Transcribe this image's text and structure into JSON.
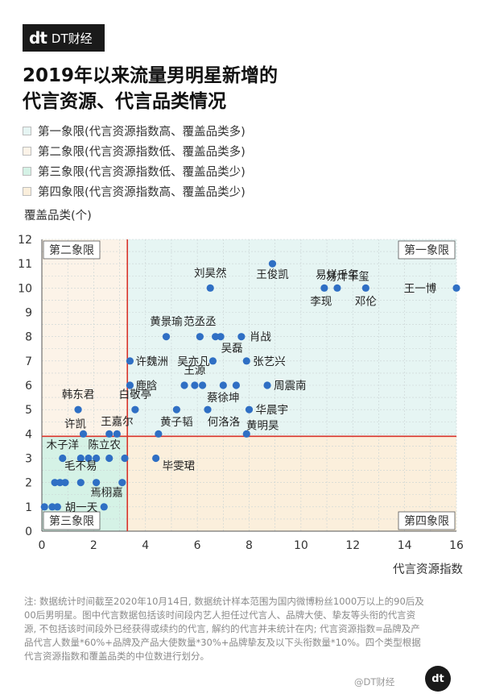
{
  "brand": {
    "mark": "dt",
    "name": "DT财经"
  },
  "title": {
    "line1": "2019年以来流量男明星新增的",
    "line2": "代言资源、代言品类情况"
  },
  "legend": [
    {
      "label": "第一象限(代言资源指数高、覆盖品类多)",
      "color": "#e6f5f3"
    },
    {
      "label": "第二象限(代言资源指数低、覆盖品类多)",
      "color": "#fcf3e8"
    },
    {
      "label": "第三象限(代言资源指数低、覆盖品类少)",
      "color": "#d5f2e6"
    },
    {
      "label": "第四象限(代言资源指数高、覆盖品类少)",
      "color": "#fbefdc"
    }
  ],
  "chart_data": {
    "type": "scatter",
    "title": "",
    "xlabel": "代言资源指数",
    "ylabel": "覆盖品类(个)",
    "xlim": [
      0,
      16
    ],
    "ylim": [
      0,
      12
    ],
    "xticks": [
      "0",
      "2",
      "4",
      "6",
      "8",
      "10",
      "12",
      "14",
      "16"
    ],
    "yticks": [
      "0",
      "1",
      "2",
      "3",
      "4",
      "5",
      "6",
      "7",
      "8",
      "9",
      "10",
      "11",
      "12"
    ],
    "median_x": 3.3,
    "median_y": 3.9,
    "quadrant_labels": {
      "q1": "第一象限",
      "q2": "第二象限",
      "q3": "第三象限",
      "q4": "第四象限"
    },
    "quadrant_colors": {
      "q1": "#e6f5f3",
      "q2": "#fcf3e8",
      "q3": "#d5f2e6",
      "q4": "#fbefdc"
    },
    "point_color": "#2f6fc4",
    "median_color": "#d9342b",
    "grid": true,
    "points": [
      {
        "x": 16.0,
        "y": 10,
        "label": "王一博"
      },
      {
        "x": 8.9,
        "y": 11,
        "label": "王俊凯"
      },
      {
        "x": 11.4,
        "y": 10,
        "label": "易烊千玺"
      },
      {
        "x": 10.9,
        "y": 10,
        "label": "李现"
      },
      {
        "x": 12.5,
        "y": 10,
        "label": "邓伦"
      },
      {
        "x": 6.5,
        "y": 10,
        "label": "刘昊然"
      },
      {
        "x": 4.8,
        "y": 8,
        "label": "黄景瑜"
      },
      {
        "x": 6.1,
        "y": 8,
        "label": "范丞丞"
      },
      {
        "x": 6.7,
        "y": 8,
        "label": ""
      },
      {
        "x": 6.9,
        "y": 8,
        "label": "吴磊"
      },
      {
        "x": 7.7,
        "y": 8,
        "label": "肖战"
      },
      {
        "x": 3.4,
        "y": 7,
        "label": "许魏洲"
      },
      {
        "x": 6.6,
        "y": 7,
        "label": "吴亦凡"
      },
      {
        "x": 7.9,
        "y": 7,
        "label": "张艺兴"
      },
      {
        "x": 3.4,
        "y": 6,
        "label": "鹿晗"
      },
      {
        "x": 5.5,
        "y": 6,
        "label": ""
      },
      {
        "x": 5.9,
        "y": 6,
        "label": "王源"
      },
      {
        "x": 6.2,
        "y": 6,
        "label": ""
      },
      {
        "x": 7.0,
        "y": 6,
        "label": "蔡徐坤"
      },
      {
        "x": 7.5,
        "y": 6,
        "label": ""
      },
      {
        "x": 8.7,
        "y": 6,
        "label": "周震南"
      },
      {
        "x": 1.4,
        "y": 5,
        "label": "韩东君"
      },
      {
        "x": 3.6,
        "y": 5,
        "label": "白敬亭"
      },
      {
        "x": 5.2,
        "y": 5,
        "label": "黄子韬"
      },
      {
        "x": 6.4,
        "y": 5,
        "label": "何洛洛"
      },
      {
        "x": 8.0,
        "y": 5,
        "label": "华晨宇"
      },
      {
        "x": 1.6,
        "y": 4,
        "label": "许凯"
      },
      {
        "x": 2.6,
        "y": 4,
        "label": ""
      },
      {
        "x": 2.9,
        "y": 4,
        "label": "王嘉尔"
      },
      {
        "x": 4.5,
        "y": 4,
        "label": ""
      },
      {
        "x": 7.9,
        "y": 4,
        "label": "黄明昊"
      },
      {
        "x": 0.8,
        "y": 3,
        "label": "木子洋"
      },
      {
        "x": 1.5,
        "y": 3,
        "label": ""
      },
      {
        "x": 1.8,
        "y": 3,
        "label": ""
      },
      {
        "x": 2.1,
        "y": 3,
        "label": "陈立农"
      },
      {
        "x": 2.6,
        "y": 3,
        "label": ""
      },
      {
        "x": 3.2,
        "y": 3,
        "label": ""
      },
      {
        "x": 4.4,
        "y": 3,
        "label": "毕雯珺"
      },
      {
        "x": 0.5,
        "y": 2,
        "label": ""
      },
      {
        "x": 0.7,
        "y": 2,
        "label": ""
      },
      {
        "x": 0.9,
        "y": 2,
        "label": ""
      },
      {
        "x": 1.5,
        "y": 2,
        "label": "毛不易"
      },
      {
        "x": 3.1,
        "y": 2,
        "label": ""
      },
      {
        "x": 2.1,
        "y": 2,
        "label": ""
      },
      {
        "x": 0.1,
        "y": 1,
        "label": ""
      },
      {
        "x": 0.4,
        "y": 1,
        "label": ""
      },
      {
        "x": 0.6,
        "y": 1,
        "label": ""
      },
      {
        "x": 2.4,
        "y": 1,
        "label": "胡一天"
      }
    ],
    "annotations": [
      {
        "label": "易烊千玺",
        "x": 11.8,
        "y": 10.5
      },
      {
        "label": "焉栩嘉",
        "x": 2.5,
        "y": 1.6
      }
    ]
  },
  "footnote": "注: 数据统计时间截至2020年10月14日, 数据统计样本范围为国内微博粉丝1000万以上的90后及00后男明星。图中代言数据包括该时间段内艺人担任过代言人、品牌大使、挚友等头衔的代言资源, 不包括该时间段外已经获得或续约的代言, 解约的代言并未统计在内; 代言资源指数=品牌及产品代言人数量*60%+品牌及产品大使数量*30%+品牌挚友及以下头衔数量*10%。四个类型根据代言资源指数和覆盖品类的中位数进行划分。",
  "weibo": "@DT财经",
  "logo_bottom": "dt"
}
